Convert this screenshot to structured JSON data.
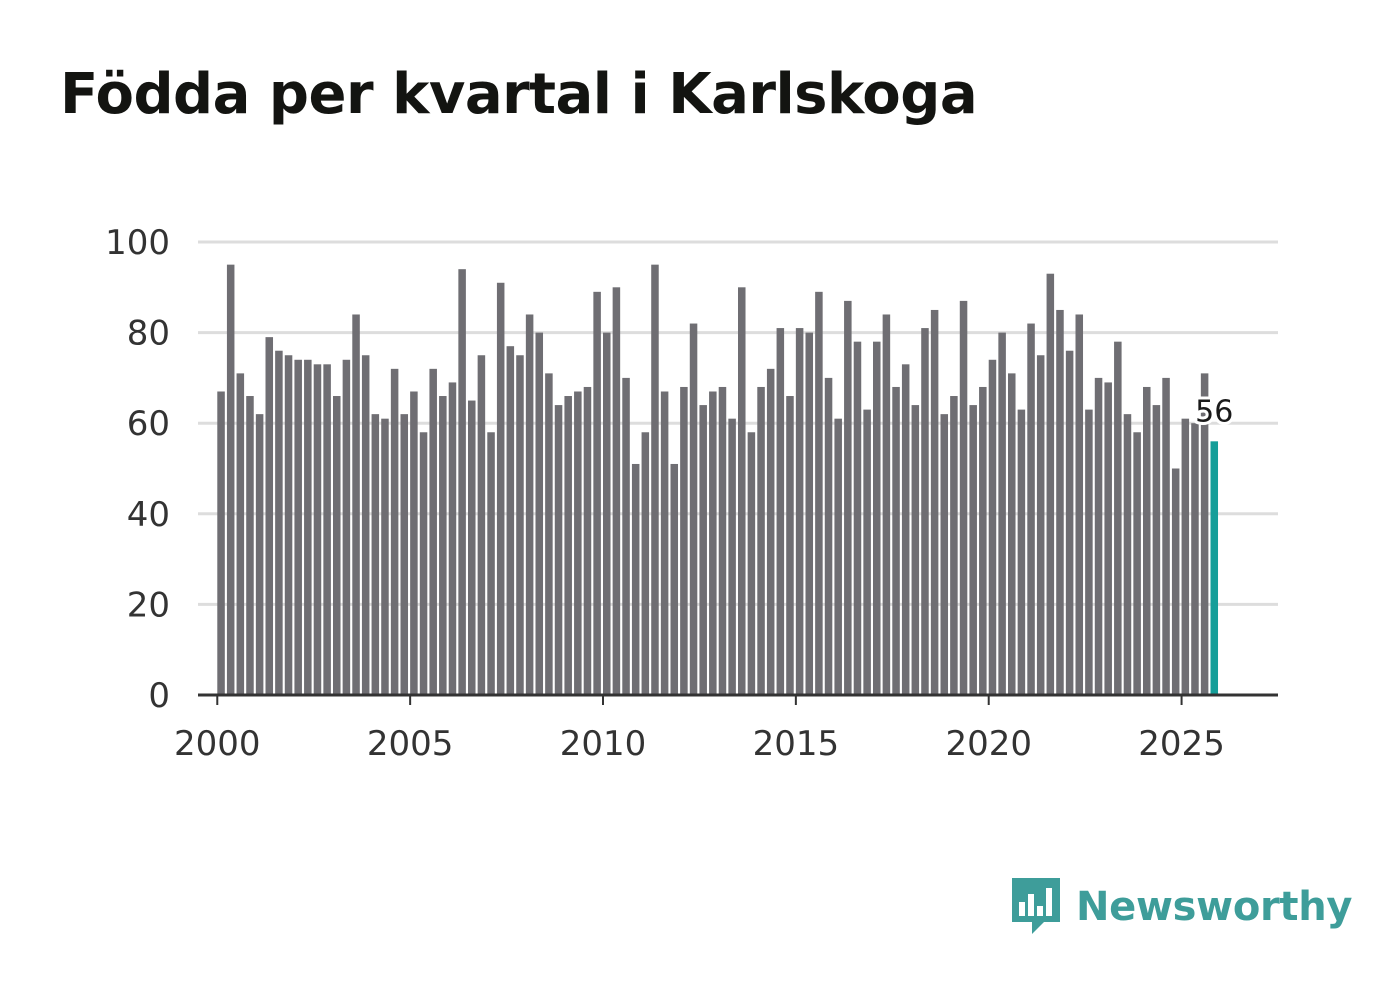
{
  "title": "Födda per kvartal i Karlskoga",
  "brand": {
    "name": "Newsworthy",
    "color": "#3e9d9a"
  },
  "colors": {
    "bar": "#6f6e73",
    "highlight": "#159e99",
    "grid": "#dddddd",
    "axis": "#333333"
  },
  "chart_data": {
    "type": "bar",
    "title": "Födda per kvartal i Karlskoga",
    "xlabel": "",
    "ylabel": "",
    "ylim": [
      0,
      100
    ],
    "yticks": [
      0,
      20,
      40,
      60,
      80,
      100
    ],
    "xticks": [
      2000,
      2005,
      2010,
      2015,
      2020,
      2025
    ],
    "xlim": [
      1999.5,
      2027.5
    ],
    "grid": true,
    "start_year": 2000,
    "start_quarter": 1,
    "values": [
      67,
      95,
      71,
      66,
      62,
      79,
      76,
      75,
      74,
      74,
      73,
      73,
      66,
      74,
      84,
      75,
      62,
      61,
      72,
      62,
      67,
      58,
      72,
      66,
      69,
      94,
      65,
      75,
      58,
      91,
      77,
      75,
      84,
      80,
      71,
      64,
      66,
      67,
      68,
      89,
      80,
      90,
      70,
      51,
      58,
      95,
      67,
      51,
      68,
      82,
      64,
      67,
      68,
      61,
      90,
      58,
      68,
      72,
      81,
      66,
      81,
      80,
      89,
      70,
      61,
      87,
      78,
      63,
      78,
      84,
      68,
      73,
      64,
      81,
      85,
      62,
      66,
      87,
      64,
      68,
      74,
      80,
      71,
      63,
      82,
      75,
      93,
      85,
      76,
      84,
      63,
      70,
      69,
      78,
      62,
      58,
      68,
      64,
      70,
      50,
      61,
      60,
      71,
      56
    ],
    "highlight_index": 103,
    "highlight_label": "56"
  }
}
